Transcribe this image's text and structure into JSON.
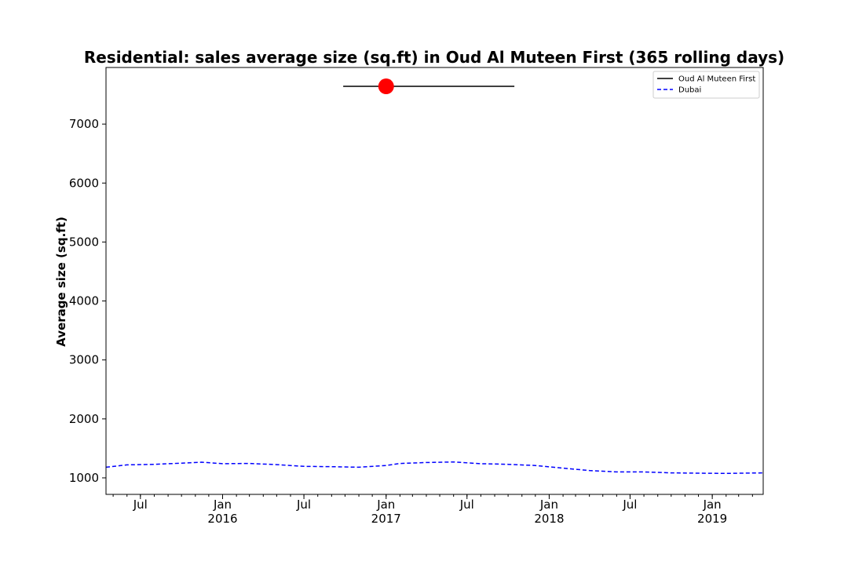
{
  "chart_data": {
    "type": "line",
    "title": "Residential: sales average size (sq.ft) in Oud Al Muteen First (365 rolling days)",
    "xlabel": "",
    "ylabel": "Average size (sq.ft)",
    "xlim": [
      "2015-04-15",
      "2019-04-25"
    ],
    "ylim": [
      720,
      7960
    ],
    "yticks": [
      1000,
      2000,
      3000,
      4000,
      5000,
      6000,
      7000
    ],
    "xticks": [
      {
        "date": "2015-07-01",
        "label": "Jul",
        "sublabel": ""
      },
      {
        "date": "2016-01-01",
        "label": "Jan",
        "sublabel": "2016"
      },
      {
        "date": "2016-07-01",
        "label": "Jul",
        "sublabel": ""
      },
      {
        "date": "2017-01-01",
        "label": "Jan",
        "sublabel": "2017"
      },
      {
        "date": "2017-07-01",
        "label": "Jul",
        "sublabel": ""
      },
      {
        "date": "2018-01-01",
        "label": "Jan",
        "sublabel": "2018"
      },
      {
        "date": "2018-07-01",
        "label": "Jul",
        "sublabel": ""
      },
      {
        "date": "2019-01-01",
        "label": "Jan",
        "sublabel": "2019"
      }
    ],
    "grid": false,
    "legend_position": "top-right",
    "series": [
      {
        "name": "Oud Al Muteen First",
        "style": "solid",
        "color": "#000000",
        "x": [
          "2016-09-27",
          "2017-10-15"
        ],
        "y": [
          7640,
          7640
        ],
        "marker": {
          "x": "2017-01-01",
          "y": 7640,
          "color": "#ff0000"
        }
      },
      {
        "name": "Dubai",
        "style": "dashed",
        "color": "#0000ff",
        "x": [
          "2015-04-15",
          "2015-06-01",
          "2015-08-01",
          "2015-10-01",
          "2015-11-15",
          "2016-01-01",
          "2016-03-01",
          "2016-05-01",
          "2016-07-01",
          "2016-09-01",
          "2016-11-01",
          "2017-01-01",
          "2017-02-01",
          "2017-04-01",
          "2017-06-01",
          "2017-08-01",
          "2017-10-01",
          "2017-12-01",
          "2018-02-01",
          "2018-04-01",
          "2018-06-01",
          "2018-08-01",
          "2018-10-01",
          "2018-12-01",
          "2019-02-01",
          "2019-04-25"
        ],
        "y": [
          1180,
          1220,
          1230,
          1250,
          1265,
          1240,
          1245,
          1225,
          1195,
          1190,
          1180,
          1210,
          1245,
          1260,
          1270,
          1240,
          1230,
          1210,
          1165,
          1125,
          1100,
          1100,
          1085,
          1080,
          1075,
          1085
        ]
      }
    ]
  }
}
